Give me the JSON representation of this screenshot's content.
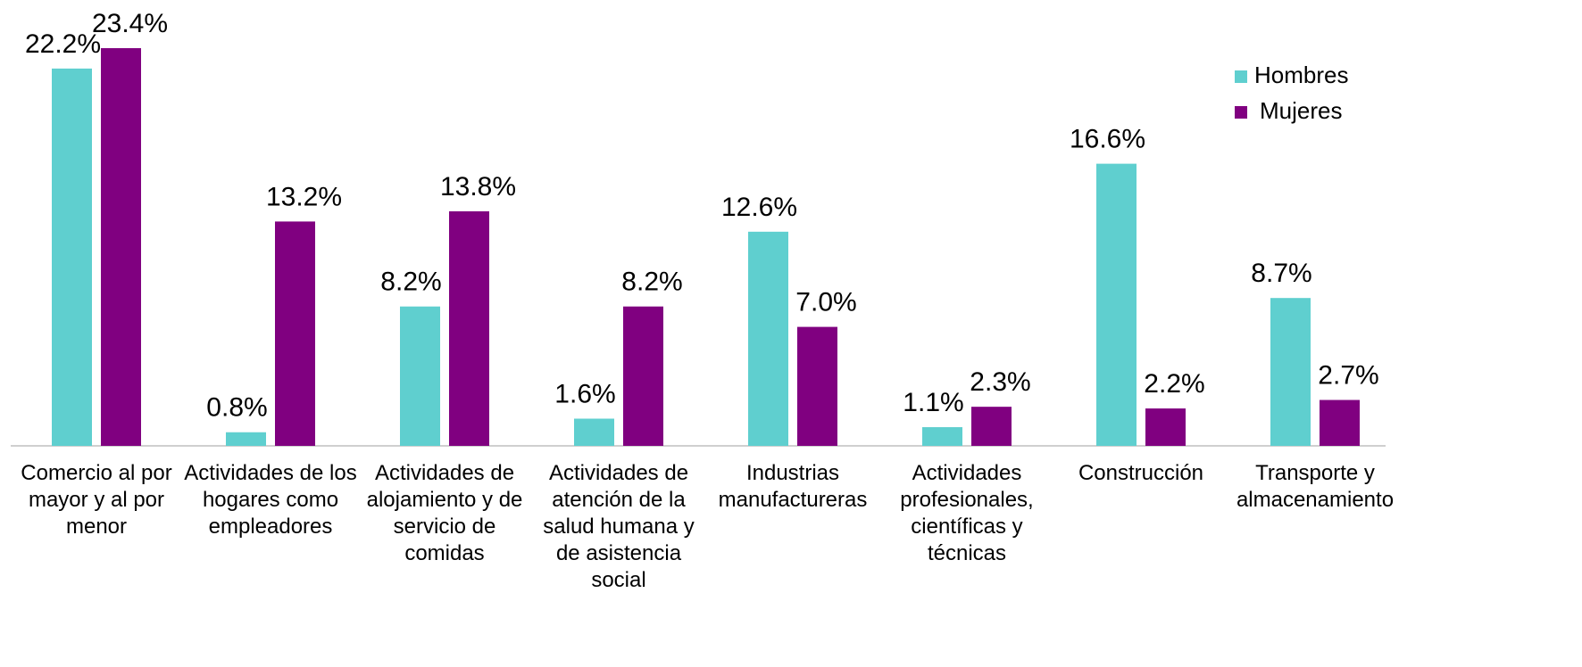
{
  "chart_data": {
    "type": "bar",
    "categories": [
      "Comercio al por mayor y al por menor",
      "Actividades de los hogares como empleadores",
      "Actividades de alojamiento y de servicio de comidas",
      "Actividades de atención de la salud humana y de asistencia social",
      "Industrias manufactureras",
      "Actividades profesionales, científicas y técnicas",
      "Construcción",
      "Transporte y almacenamiento"
    ],
    "series": [
      {
        "name": "Hombres",
        "color": "#5fcfcf",
        "values": [
          22.2,
          0.8,
          8.2,
          1.6,
          12.6,
          1.1,
          16.6,
          8.7
        ],
        "value_labels": [
          "22.2%",
          "0.8%",
          "8.2%",
          "1.6%",
          "12.6%",
          "1.1%",
          "16.6%",
          "8.7%"
        ]
      },
      {
        "name": "Mujeres",
        "color": "#800080",
        "values": [
          23.4,
          13.2,
          13.8,
          8.2,
          7.0,
          2.3,
          2.2,
          2.7
        ],
        "value_labels": [
          "23.4%",
          "13.2%",
          "13.8%",
          "8.2%",
          "7.0%",
          "2.3%",
          "2.2%",
          "2.7%"
        ]
      }
    ],
    "legend": "top-right"
  }
}
